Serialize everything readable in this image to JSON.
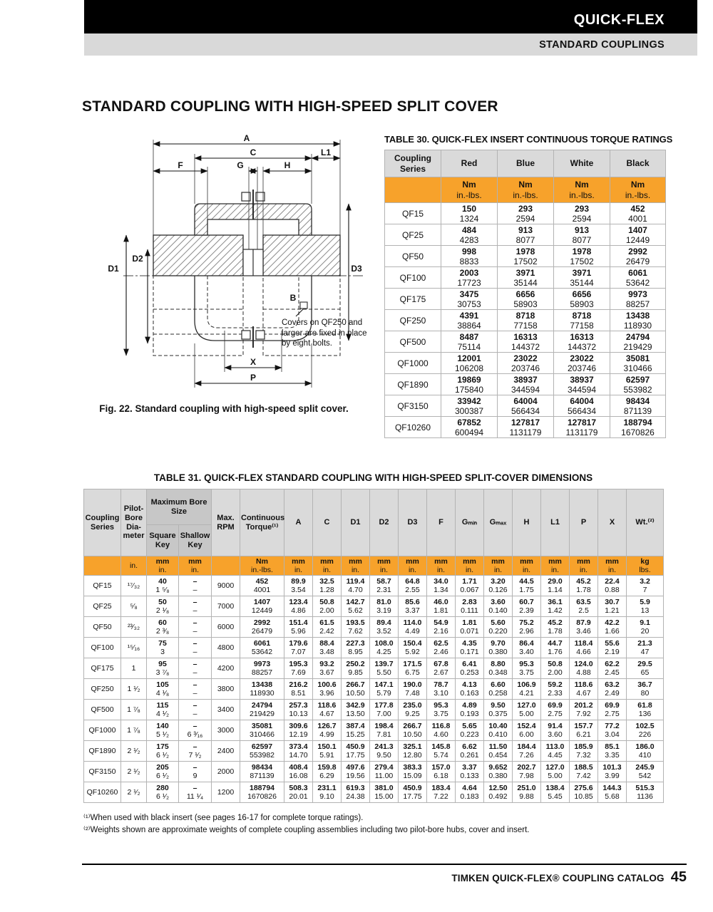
{
  "header": {
    "brand": "QUICK-FLEX",
    "section": "STANDARD COUPLINGS"
  },
  "page_title": "STANDARD COUPLING WITH HIGH-SPEED SPLIT COVER",
  "figure": {
    "caption": "Fig. 22. Standard coupling with high-speed split cover.",
    "note": "Covers on QF250 and larger are fixed in place by eight bolts.",
    "labels": {
      "a": "A",
      "c": "C",
      "l1": "L1",
      "f": "F",
      "g": "G",
      "h": "H",
      "d1": "D1",
      "d2": "D2",
      "d3": "D3",
      "b": "B",
      "x": "X",
      "p": "P"
    }
  },
  "table30": {
    "title": "TABLE 30. QUICK-FLEX INSERT CONTINUOUS TORQUE RATINGS",
    "col_header": "Coupling Series",
    "columns": [
      "Red",
      "Blue",
      "White",
      "Black"
    ],
    "unit_top": "Nm",
    "unit_bottom": "in.-lbs.",
    "rows": [
      {
        "series": "QF15",
        "values": [
          [
            "150",
            "1324"
          ],
          [
            "293",
            "2594"
          ],
          [
            "293",
            "2594"
          ],
          [
            "452",
            "4001"
          ]
        ]
      },
      {
        "series": "QF25",
        "values": [
          [
            "484",
            "4283"
          ],
          [
            "913",
            "8077"
          ],
          [
            "913",
            "8077"
          ],
          [
            "1407",
            "12449"
          ]
        ]
      },
      {
        "series": "QF50",
        "values": [
          [
            "998",
            "8833"
          ],
          [
            "1978",
            "17502"
          ],
          [
            "1978",
            "17502"
          ],
          [
            "2992",
            "26479"
          ]
        ]
      },
      {
        "series": "QF100",
        "values": [
          [
            "2003",
            "17723"
          ],
          [
            "3971",
            "35144"
          ],
          [
            "3971",
            "35144"
          ],
          [
            "6061",
            "53642"
          ]
        ]
      },
      {
        "series": "QF175",
        "values": [
          [
            "3475",
            "30753"
          ],
          [
            "6656",
            "58903"
          ],
          [
            "6656",
            "58903"
          ],
          [
            "9973",
            "88257"
          ]
        ]
      },
      {
        "series": "QF250",
        "values": [
          [
            "4391",
            "38864"
          ],
          [
            "8718",
            "77158"
          ],
          [
            "8718",
            "77158"
          ],
          [
            "13438",
            "118930"
          ]
        ]
      },
      {
        "series": "QF500",
        "values": [
          [
            "8487",
            "75114"
          ],
          [
            "16313",
            "144372"
          ],
          [
            "16313",
            "144372"
          ],
          [
            "24794",
            "219429"
          ]
        ]
      },
      {
        "series": "QF1000",
        "values": [
          [
            "12001",
            "106208"
          ],
          [
            "23022",
            "203746"
          ],
          [
            "23022",
            "203746"
          ],
          [
            "35081",
            "310466"
          ]
        ]
      },
      {
        "series": "QF1890",
        "values": [
          [
            "19869",
            "175840"
          ],
          [
            "38937",
            "344594"
          ],
          [
            "38937",
            "344594"
          ],
          [
            "62597",
            "553982"
          ]
        ]
      },
      {
        "series": "QF3150",
        "values": [
          [
            "33942",
            "300387"
          ],
          [
            "64004",
            "566434"
          ],
          [
            "64004",
            "566434"
          ],
          [
            "98434",
            "871139"
          ]
        ]
      },
      {
        "series": "QF10260",
        "values": [
          [
            "67852",
            "600494"
          ],
          [
            "127817",
            "1131179"
          ],
          [
            "127817",
            "1131179"
          ],
          [
            "188794",
            "1670826"
          ]
        ]
      }
    ]
  },
  "table31": {
    "title": "TABLE 31. QUICK-FLEX STANDARD COUPLING WITH HIGH-SPEED SPLIT-COVER DIMENSIONS",
    "col_series": "Coupling Series",
    "col_pilot": "Pilot-Bore Dia-meter",
    "col_bore_group": "Maximum Bore Size",
    "col_square": "Square Key",
    "col_shallow": "Shallow Key",
    "col_rpm": "Max. RPM",
    "col_torque": "Continuous Torque⁽¹⁾",
    "dims": [
      "A",
      "C",
      "D1",
      "D2",
      "D3",
      "F",
      "Gₘᵢₙ",
      "Gₘₐₓ",
      "H",
      "L1",
      "P",
      "X"
    ],
    "col_wt": "Wt.⁽²⁾",
    "units": {
      "pilot": "in.",
      "mm": "mm",
      "in": "in.",
      "nm": "Nm",
      "inlbs": "in.-lbs.",
      "kg": "kg",
      "lbs": "lbs."
    },
    "rows": [
      {
        "series": "QF15",
        "pilot": "¹⁷⁄₃₂",
        "square": [
          "40",
          "1 ⁵⁄₈"
        ],
        "shallow": [
          "–",
          "–"
        ],
        "rpm": "9000",
        "cells": [
          [
            "452",
            "4001"
          ],
          [
            "89.9",
            "3.54"
          ],
          [
            "32.5",
            "1.28"
          ],
          [
            "119.4",
            "4.70"
          ],
          [
            "58.7",
            "2.31"
          ],
          [
            "64.8",
            "2.55"
          ],
          [
            "34.0",
            "1.34"
          ],
          [
            "1.71",
            "0.067"
          ],
          [
            "3.20",
            "0.126"
          ],
          [
            "44.5",
            "1.75"
          ],
          [
            "29.0",
            "1.14"
          ],
          [
            "45.2",
            "1.78"
          ],
          [
            "22.4",
            "0.88"
          ],
          [
            "3.2",
            "7"
          ]
        ]
      },
      {
        "series": "QF25",
        "pilot": "⁵⁄₈",
        "square": [
          "50",
          "2 ¹⁄₈"
        ],
        "shallow": [
          "–",
          "–"
        ],
        "rpm": "7000",
        "cells": [
          [
            "1407",
            "12449"
          ],
          [
            "123.4",
            "4.86"
          ],
          [
            "50.8",
            "2.00"
          ],
          [
            "142.7",
            "5.62"
          ],
          [
            "81.0",
            "3.19"
          ],
          [
            "85.6",
            "3.37"
          ],
          [
            "46.0",
            "1.81"
          ],
          [
            "2.83",
            "0.111"
          ],
          [
            "3.60",
            "0.140"
          ],
          [
            "60.7",
            "2.39"
          ],
          [
            "36.1",
            "1.42"
          ],
          [
            "63.5",
            "2.5"
          ],
          [
            "30.7",
            "1.21"
          ],
          [
            "5.9",
            "13"
          ]
        ]
      },
      {
        "series": "QF50",
        "pilot": "²³⁄₃₂",
        "square": [
          "60",
          "2 ³⁄₈"
        ],
        "shallow": [
          "–",
          "–"
        ],
        "rpm": "6000",
        "cells": [
          [
            "2992",
            "26479"
          ],
          [
            "151.4",
            "5.96"
          ],
          [
            "61.5",
            "2.42"
          ],
          [
            "193.5",
            "7.62"
          ],
          [
            "89.4",
            "3.52"
          ],
          [
            "114.0",
            "4.49"
          ],
          [
            "54.9",
            "2.16"
          ],
          [
            "1.81",
            "0.071"
          ],
          [
            "5.60",
            "0.220"
          ],
          [
            "75.2",
            "2.96"
          ],
          [
            "45.2",
            "1.78"
          ],
          [
            "87.9",
            "3.46"
          ],
          [
            "42.2",
            "1.66"
          ],
          [
            "9.1",
            "20"
          ]
        ]
      },
      {
        "series": "QF100",
        "pilot": "¹⁵⁄₁₆",
        "square": [
          "75",
          "3"
        ],
        "shallow": [
          "–",
          "–"
        ],
        "rpm": "4800",
        "cells": [
          [
            "6061",
            "53642"
          ],
          [
            "179.6",
            "7.07"
          ],
          [
            "88.4",
            "3.48"
          ],
          [
            "227.3",
            "8.95"
          ],
          [
            "108.0",
            "4.25"
          ],
          [
            "150.4",
            "5.92"
          ],
          [
            "62.5",
            "2.46"
          ],
          [
            "4.35",
            "0.171"
          ],
          [
            "9.70",
            "0.380"
          ],
          [
            "86.4",
            "3.40"
          ],
          [
            "44.7",
            "1.76"
          ],
          [
            "118.4",
            "4.66"
          ],
          [
            "55.6",
            "2.19"
          ],
          [
            "21.3",
            "47"
          ]
        ]
      },
      {
        "series": "QF175",
        "pilot": "1",
        "square": [
          "95",
          "3 ⁷⁄₈"
        ],
        "shallow": [
          "–",
          "–"
        ],
        "rpm": "4200",
        "cells": [
          [
            "9973",
            "88257"
          ],
          [
            "195.3",
            "7.69"
          ],
          [
            "93.2",
            "3.67"
          ],
          [
            "250.2",
            "9.85"
          ],
          [
            "139.7",
            "5.50"
          ],
          [
            "171.5",
            "6.75"
          ],
          [
            "67.8",
            "2.67"
          ],
          [
            "6.41",
            "0.253"
          ],
          [
            "8.80",
            "0.348"
          ],
          [
            "95.3",
            "3.75"
          ],
          [
            "50.8",
            "2.00"
          ],
          [
            "124.0",
            "4.88"
          ],
          [
            "62.2",
            "2.45"
          ],
          [
            "29.5",
            "65"
          ]
        ]
      },
      {
        "series": "QF250",
        "pilot": "1 ¹⁄₂",
        "square": [
          "105",
          "4 ¹⁄₈"
        ],
        "shallow": [
          "–",
          "–"
        ],
        "rpm": "3800",
        "cells": [
          [
            "13438",
            "118930"
          ],
          [
            "216.2",
            "8.51"
          ],
          [
            "100.6",
            "3.96"
          ],
          [
            "266.7",
            "10.50"
          ],
          [
            "147.1",
            "5.79"
          ],
          [
            "190.0",
            "7.48"
          ],
          [
            "78.7",
            "3.10"
          ],
          [
            "4.13",
            "0.163"
          ],
          [
            "6.60",
            "0.258"
          ],
          [
            "106.9",
            "4.21"
          ],
          [
            "59.2",
            "2.33"
          ],
          [
            "118.6",
            "4.67"
          ],
          [
            "63.2",
            "2.49"
          ],
          [
            "36.7",
            "80"
          ]
        ]
      },
      {
        "series": "QF500",
        "pilot": "1 ⁷⁄₈",
        "square": [
          "115",
          "4 ¹⁄₂"
        ],
        "shallow": [
          "–",
          "–"
        ],
        "rpm": "3400",
        "cells": [
          [
            "24794",
            "219429"
          ],
          [
            "257.3",
            "10.13"
          ],
          [
            "118.6",
            "4.67"
          ],
          [
            "342.9",
            "13.50"
          ],
          [
            "177.8",
            "7.00"
          ],
          [
            "235.0",
            "9.25"
          ],
          [
            "95.3",
            "3.75"
          ],
          [
            "4.89",
            "0.193"
          ],
          [
            "9.50",
            "0.375"
          ],
          [
            "127.0",
            "5.00"
          ],
          [
            "69.9",
            "2.75"
          ],
          [
            "201.2",
            "7.92"
          ],
          [
            "69.9",
            "2.75"
          ],
          [
            "61.8",
            "136"
          ]
        ]
      },
      {
        "series": "QF1000",
        "pilot": "1 ⁷⁄₈",
        "square": [
          "140",
          "5 ¹⁄₂"
        ],
        "shallow": [
          "–",
          "6 ³⁄₁₆"
        ],
        "rpm": "3000",
        "cells": [
          [
            "35081",
            "310466"
          ],
          [
            "309.6",
            "12.19"
          ],
          [
            "126.7",
            "4.99"
          ],
          [
            "387.4",
            "15.25"
          ],
          [
            "198.4",
            "7.81"
          ],
          [
            "266.7",
            "10.50"
          ],
          [
            "116.8",
            "4.60"
          ],
          [
            "5.65",
            "0.223"
          ],
          [
            "10.40",
            "0.410"
          ],
          [
            "152.4",
            "6.00"
          ],
          [
            "91.4",
            "3.60"
          ],
          [
            "157.7",
            "6.21"
          ],
          [
            "77.2",
            "3.04"
          ],
          [
            "102.5",
            "226"
          ]
        ]
      },
      {
        "series": "QF1890",
        "pilot": "2 ¹⁄₂",
        "square": [
          "175",
          "6 ¹⁄₂"
        ],
        "shallow": [
          "–",
          "7 ¹⁄₂"
        ],
        "rpm": "2400",
        "cells": [
          [
            "62597",
            "553982"
          ],
          [
            "373.4",
            "14.70"
          ],
          [
            "150.1",
            "5.91"
          ],
          [
            "450.9",
            "17.75"
          ],
          [
            "241.3",
            "9.50"
          ],
          [
            "325.1",
            "12.80"
          ],
          [
            "145.8",
            "5.74"
          ],
          [
            "6.62",
            "0.261"
          ],
          [
            "11.50",
            "0.454"
          ],
          [
            "184.4",
            "7.26"
          ],
          [
            "113.0",
            "4.45"
          ],
          [
            "185.9",
            "7.32"
          ],
          [
            "85.1",
            "3.35"
          ],
          [
            "186.0",
            "410"
          ]
        ]
      },
      {
        "series": "QF3150",
        "pilot": "2 ¹⁄₂",
        "square": [
          "205",
          "6 ¹⁄₂"
        ],
        "shallow": [
          "–",
          "9"
        ],
        "rpm": "2000",
        "cells": [
          [
            "98434",
            "871139"
          ],
          [
            "408.4",
            "16.08"
          ],
          [
            "159.8",
            "6.29"
          ],
          [
            "497.6",
            "19.56"
          ],
          [
            "279.4",
            "11.00"
          ],
          [
            "383.3",
            "15.09"
          ],
          [
            "157.0",
            "6.18"
          ],
          [
            "3.37",
            "0.133"
          ],
          [
            "9.652",
            "0.380"
          ],
          [
            "202.7",
            "7.98"
          ],
          [
            "127.0",
            "5.00"
          ],
          [
            "188.5",
            "7.42"
          ],
          [
            "101.3",
            "3.99"
          ],
          [
            "245.9",
            "542"
          ]
        ]
      },
      {
        "series": "QF10260",
        "pilot": "2 ¹⁄₂",
        "square": [
          "280",
          "6 ¹⁄₂"
        ],
        "shallow": [
          "–",
          "11 ¹⁄₄"
        ],
        "rpm": "1200",
        "cells": [
          [
            "188794",
            "1670826"
          ],
          [
            "508.3",
            "20.01"
          ],
          [
            "231.1",
            "9.10"
          ],
          [
            "619.3",
            "24.38"
          ],
          [
            "381.0",
            "15.00"
          ],
          [
            "450.9",
            "17.75"
          ],
          [
            "183.4",
            "7.22"
          ],
          [
            "4.64",
            "0.183"
          ],
          [
            "12.50",
            "0.492"
          ],
          [
            "251.0",
            "9.88"
          ],
          [
            "138.4",
            "5.45"
          ],
          [
            "275.6",
            "10.85"
          ],
          [
            "144.3",
            "5.68"
          ],
          [
            "515.3",
            "1136"
          ]
        ]
      }
    ]
  },
  "footnotes": [
    "⁽¹⁾When used with black insert (see pages 16-17 for complete torque ratings).",
    "⁽²⁾Weights shown are approximate weights of complete coupling assemblies including two pilot-bore hubs, cover and insert."
  ],
  "footer": {
    "brand": "TIMKEN QUICK-FLEX® COUPLING CATALOG",
    "page": "45"
  },
  "colors": {
    "accent_orange": "#F7A22B",
    "header_gray": "#dadada",
    "header_gray_dark": "#c7c7c7"
  }
}
